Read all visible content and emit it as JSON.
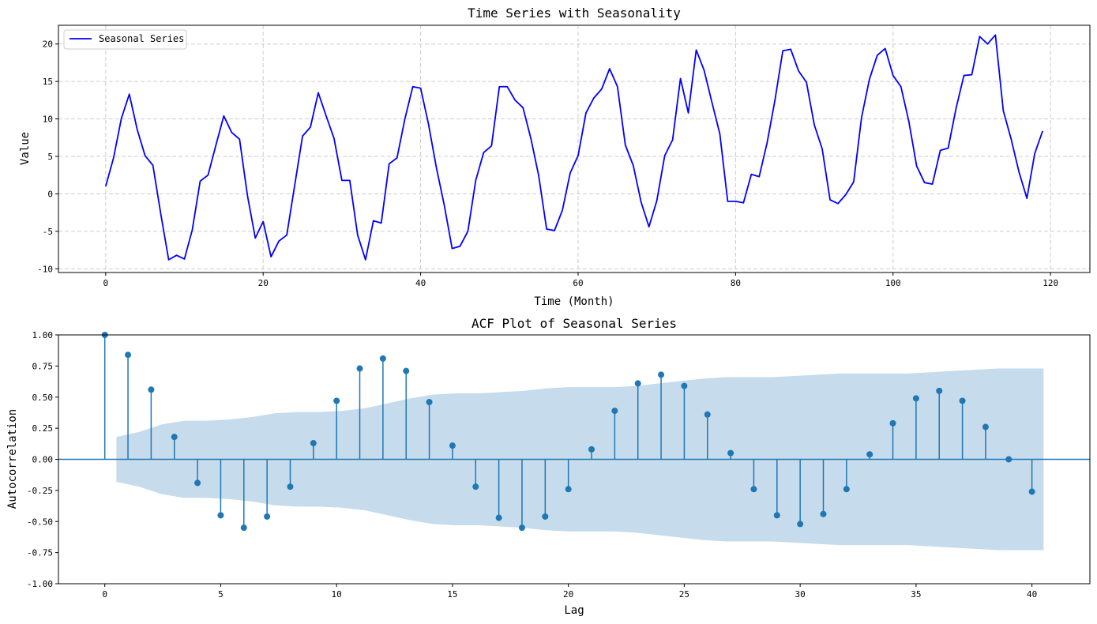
{
  "chart_data": [
    {
      "type": "line",
      "title": "Time Series with Seasonality",
      "xlabel": "Time (Month)",
      "ylabel": "Value",
      "xlim": [
        -6,
        125
      ],
      "ylim": [
        -10.5,
        22.5
      ],
      "grid": true,
      "legend_position": "top-left",
      "xticks": [
        0,
        20,
        40,
        60,
        80,
        100,
        120
      ],
      "yticks": [
        -10,
        -5,
        0,
        5,
        10,
        15,
        20
      ],
      "series": [
        {
          "name": "Seasonal Series",
          "color": "#0000ff",
          "x": [
            0,
            1,
            2,
            3,
            4,
            5,
            6,
            7,
            8,
            9,
            10,
            11,
            12,
            13,
            14,
            15,
            16,
            17,
            18,
            19,
            20,
            21,
            22,
            23,
            24,
            25,
            26,
            27,
            28,
            29,
            30,
            31,
            32,
            33,
            34,
            35,
            36,
            37,
            38,
            39,
            40,
            41,
            42,
            43,
            44,
            45,
            46,
            47,
            48,
            49,
            50,
            51,
            52,
            53,
            54,
            55,
            56,
            57,
            58,
            59,
            60,
            61,
            62,
            63,
            64,
            65,
            66,
            67,
            68,
            69,
            70,
            71,
            72,
            73,
            74,
            75,
            76,
            77,
            78,
            79,
            80,
            81,
            82,
            83,
            84,
            85,
            86,
            87,
            88,
            89,
            90,
            91,
            92,
            93,
            94,
            95,
            96,
            97,
            98,
            99,
            100,
            101,
            102,
            103,
            104,
            105,
            106,
            107,
            108,
            109,
            110,
            111,
            112,
            113,
            114,
            115,
            116,
            117,
            118,
            119
          ],
          "values": [
            1.0,
            4.8,
            10.1,
            13.3,
            8.6,
            5.1,
            3.8,
            -2.7,
            -8.8,
            -8.2,
            -8.7,
            -4.8,
            1.7,
            2.5,
            6.5,
            10.4,
            8.2,
            7.3,
            -0.2,
            -5.9,
            -3.7,
            -8.4,
            -6.3,
            -5.5,
            1.1,
            7.7,
            8.9,
            13.5,
            10.4,
            7.4,
            1.8,
            1.8,
            -5.5,
            -8.8,
            -3.6,
            -3.9,
            4.0,
            4.8,
            10.0,
            14.3,
            14.1,
            9.3,
            3.5,
            -1.5,
            -7.3,
            -7.0,
            -5.0,
            1.8,
            5.5,
            6.4,
            14.3,
            14.3,
            12.5,
            11.5,
            7.4,
            2.4,
            -4.7,
            -4.9,
            -2.2,
            2.8,
            5.1,
            10.8,
            12.8,
            14.0,
            16.7,
            14.3,
            6.5,
            3.8,
            -1.1,
            -4.4,
            -0.9,
            5.1,
            7.2,
            15.4,
            10.8,
            19.2,
            16.5,
            12.2,
            8.0,
            -1.0,
            -1.0,
            -1.2,
            2.6,
            2.3,
            6.8,
            12.5,
            19.1,
            19.3,
            16.4,
            14.9,
            9.2,
            6.0,
            -0.8,
            -1.3,
            -0.1,
            1.6,
            10.2,
            15.3,
            18.5,
            19.4,
            15.8,
            14.3,
            9.7,
            3.7,
            1.5,
            1.3,
            5.8,
            6.1,
            11.4,
            15.8,
            15.9,
            21.0,
            20.0,
            21.2,
            11.1,
            7.3,
            2.9,
            -0.6,
            5.4,
            8.4
          ]
        }
      ]
    },
    {
      "type": "stem",
      "title": "ACF Plot of Seasonal Series",
      "xlabel": "Lag",
      "ylabel": "Autocorrelation",
      "xlim": [
        -2,
        42.5
      ],
      "ylim": [
        -1.0,
        1.0
      ],
      "grid": false,
      "xticks": [
        0,
        5,
        10,
        15,
        20,
        25,
        30,
        35,
        40
      ],
      "yticks": [
        -1.0,
        -0.75,
        -0.5,
        -0.25,
        0.0,
        0.25,
        0.5,
        0.75,
        1.0
      ],
      "ytick_labels": [
        "-1.00",
        "-0.75",
        "-0.50",
        "-0.25",
        "0.00",
        "0.25",
        "0.50",
        "0.75",
        "1.00"
      ],
      "color": "#1f77b4",
      "band_color": "#c6dbec",
      "lags": [
        0,
        1,
        2,
        3,
        4,
        5,
        6,
        7,
        8,
        9,
        10,
        11,
        12,
        13,
        14,
        15,
        16,
        17,
        18,
        19,
        20,
        21,
        22,
        23,
        24,
        25,
        26,
        27,
        28,
        29,
        30,
        31,
        32,
        33,
        34,
        35,
        36,
        37,
        38,
        39,
        40
      ],
      "values": [
        1.0,
        0.84,
        0.56,
        0.18,
        -0.19,
        -0.45,
        -0.55,
        -0.46,
        -0.22,
        0.13,
        0.47,
        0.73,
        0.81,
        0.71,
        0.46,
        0.11,
        -0.22,
        -0.47,
        -0.55,
        -0.46,
        -0.24,
        0.08,
        0.39,
        0.61,
        0.68,
        0.59,
        0.36,
        0.05,
        -0.24,
        -0.45,
        -0.52,
        -0.44,
        -0.24,
        0.04,
        0.29,
        0.49,
        0.55,
        0.47,
        0.26,
        0.0,
        -0.26
      ],
      "confidence_band": {
        "lag_start": 0.5,
        "lag_end": 40.5,
        "upper": [
          0.18,
          0.22,
          0.28,
          0.31,
          0.31,
          0.32,
          0.34,
          0.37,
          0.38,
          0.38,
          0.39,
          0.41,
          0.45,
          0.49,
          0.52,
          0.53,
          0.53,
          0.54,
          0.55,
          0.57,
          0.58,
          0.58,
          0.58,
          0.59,
          0.61,
          0.63,
          0.65,
          0.66,
          0.66,
          0.66,
          0.67,
          0.68,
          0.69,
          0.69,
          0.69,
          0.69,
          0.7,
          0.71,
          0.72,
          0.73,
          0.73,
          0.73
        ]
      }
    }
  ]
}
